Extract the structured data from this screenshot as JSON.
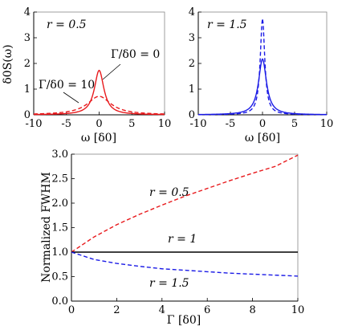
{
  "chart_data": [
    {
      "type": "line",
      "panel": "top-left",
      "annotation": "r = 0.5",
      "xlabel": "ω [δ0]",
      "ylabel": "δ0S(ω)",
      "xlim": [
        -10,
        10
      ],
      "ylim": [
        0,
        4
      ],
      "xticks": [
        "-10",
        "-5",
        "0",
        "5",
        "10"
      ],
      "yticks": [
        "0",
        "1",
        "2",
        "3",
        "4"
      ],
      "series": [
        {
          "name": "Γ/δ0 = 0",
          "style": "solid",
          "color": "#e8191c",
          "peak": 1.73,
          "width": 0.88
        },
        {
          "name": "Γ/δ0 = 10",
          "style": "dashed",
          "color": "#e8191c",
          "peak": 0.72,
          "width": 2.2
        }
      ]
    },
    {
      "type": "line",
      "panel": "top-right",
      "annotation": "r = 1.5",
      "xlabel": "ω [δ0]",
      "xlim": [
        -10,
        10
      ],
      "ylim": [
        0,
        4
      ],
      "xticks": [
        "-10",
        "-5",
        "0",
        "5",
        "10"
      ],
      "yticks": [
        "0",
        "1",
        "2",
        "3",
        "4"
      ],
      "series": [
        {
          "style": "solid",
          "color": "#1a1ae6",
          "peak": 2.17,
          "width": 0.75
        },
        {
          "style": "dashed",
          "color": "#1a1ae6",
          "peak": 3.75,
          "width": 0.42
        }
      ]
    },
    {
      "type": "line",
      "panel": "bottom",
      "xlabel": "Γ [δ0]",
      "ylabel": "Normalized FWHM",
      "xlim": [
        0,
        10
      ],
      "ylim": [
        0,
        3
      ],
      "xticks": [
        "0",
        "2",
        "4",
        "6",
        "8",
        "10"
      ],
      "yticks": [
        "0.0",
        "0.5",
        "1.0",
        "1.5",
        "2.0",
        "2.5",
        "3.0"
      ],
      "series": [
        {
          "name": "r = 0.5",
          "style": "dashed",
          "color": "#e8191c",
          "x": [
            0,
            1,
            2,
            3,
            4,
            5,
            6,
            7,
            8,
            9,
            10
          ],
          "y": [
            1.0,
            1.31,
            1.56,
            1.77,
            1.96,
            2.14,
            2.3,
            2.46,
            2.61,
            2.75,
            2.98
          ]
        },
        {
          "name": "r = 1",
          "style": "solid",
          "color": "#000000",
          "x": [
            0,
            10
          ],
          "y": [
            1.0,
            1.0
          ]
        },
        {
          "name": "r = 1.5",
          "style": "dashed",
          "color": "#1a1ae6",
          "x": [
            0,
            1,
            2,
            3,
            4,
            5,
            6,
            7,
            8,
            9,
            10
          ],
          "y": [
            1.0,
            0.85,
            0.77,
            0.71,
            0.66,
            0.63,
            0.6,
            0.57,
            0.55,
            0.53,
            0.51
          ]
        }
      ]
    }
  ]
}
